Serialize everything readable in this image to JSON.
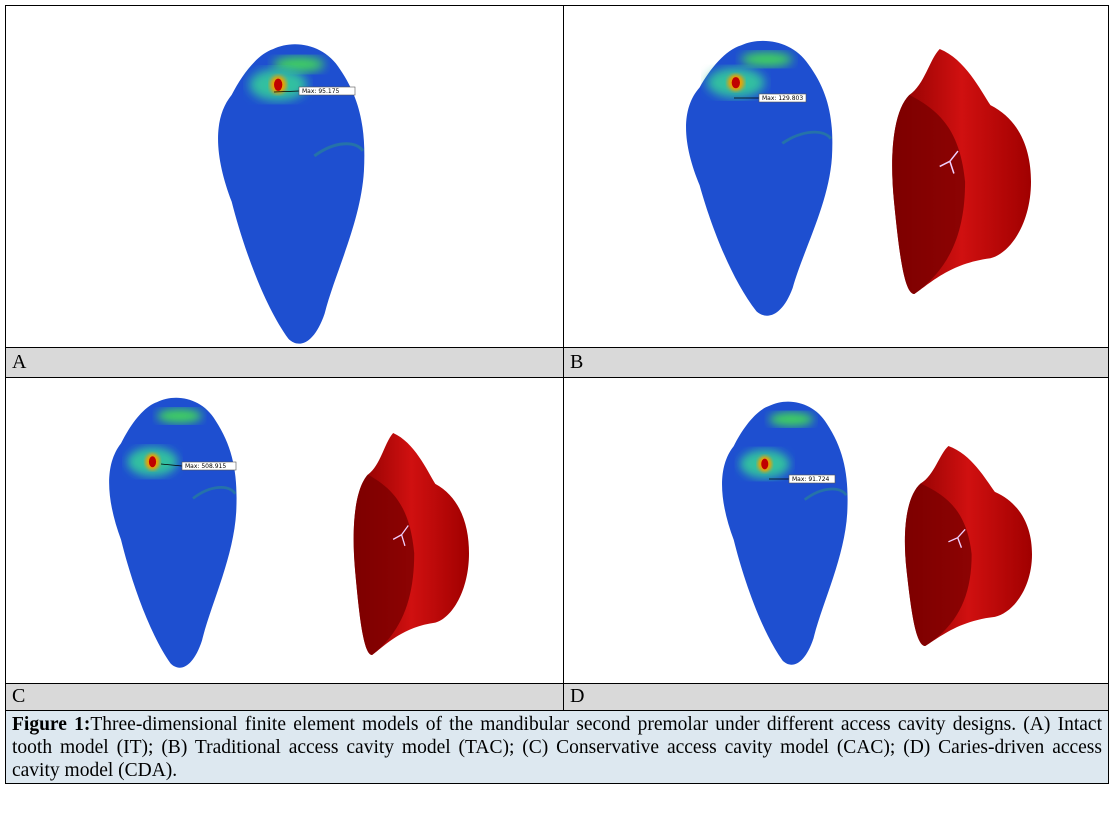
{
  "figure": {
    "panels": [
      {
        "label": "A",
        "annotation": "Max: 95.175"
      },
      {
        "label": "B",
        "annotation": "Max: 129.803"
      },
      {
        "label": "C",
        "annotation": "Max: 508.915"
      },
      {
        "label": "D",
        "annotation": "Max: 91.724"
      }
    ],
    "caption": {
      "label": "Figure 1:",
      "text": "Three-dimensional finite element models of the mandibular second premolar under different access cavity designs. (A) Intact tooth model (IT); (B) Traditional access cavity model (TAC); (C) Conservative access cavity model (CAC); (D) Caries-driven access cavity model (CDA)."
    }
  }
}
